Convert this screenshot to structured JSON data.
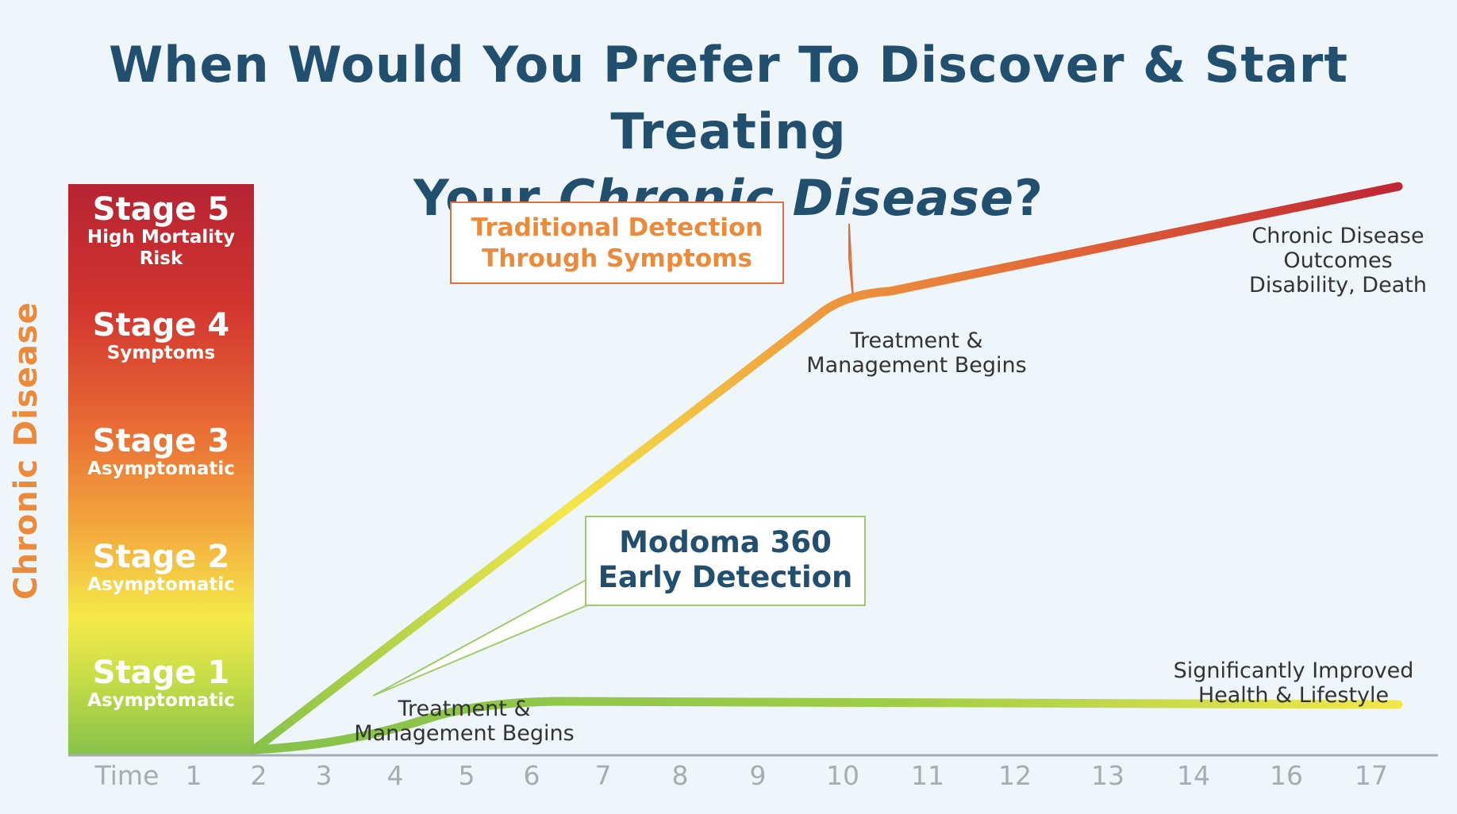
{
  "title": {
    "line1": "When Would You Prefer To Discover & Start Treating",
    "line2_prefix": "Your ",
    "line2_italic": "Chronic Disease",
    "line2_suffix": "?"
  },
  "colors": {
    "title": "#234f6e",
    "traditional_callout": "#ec8a3c",
    "modoma_callout_border": "#9fcb6b",
    "axis": "#a6adb2"
  },
  "chart_data": {
    "type": "line",
    "ylabel": "Chronic Disease",
    "xlabel": "Time",
    "x_ticks": [
      "1",
      "2",
      "3",
      "4",
      "5",
      "6",
      "7",
      "8",
      "9",
      "10",
      "11",
      "12",
      "13",
      "14",
      "16",
      "17"
    ],
    "y_categories": [
      {
        "stage": "Stage 1",
        "label": "Asymptomatic"
      },
      {
        "stage": "Stage 2",
        "label": "Asymptomatic"
      },
      {
        "stage": "Stage 3",
        "label": "Asymptomatic"
      },
      {
        "stage": "Stage 4",
        "label": "Symptoms"
      },
      {
        "stage": "Stage 5",
        "label": "High Mortality Risk"
      }
    ],
    "ylim": [
      0.5,
      5.5
    ],
    "series": [
      {
        "name": "Traditional Detection Through Symptoms",
        "x": [
          "2",
          "10",
          "17"
        ],
        "y": [
          0.5,
          4.5,
          5.5
        ]
      },
      {
        "name": "Modoma 360 Early Detection",
        "x": [
          "2",
          "4",
          "17"
        ],
        "y": [
          0.5,
          1.0,
          1.5
        ]
      }
    ],
    "annotations": {
      "traditional_treatment": "Treatment & Management Begins",
      "early_treatment": "Treatment & Management Begins",
      "traditional_outcome": [
        "Chronic Disease",
        "Outcomes",
        "Disability, Death"
      ],
      "early_outcome": [
        "Significantly Improved",
        "Health & Lifestyle"
      ]
    },
    "callouts": {
      "traditional": [
        "Traditional Detection",
        "Through Symptoms"
      ],
      "modoma": [
        "Modoma 360",
        "Early Detection"
      ]
    }
  }
}
